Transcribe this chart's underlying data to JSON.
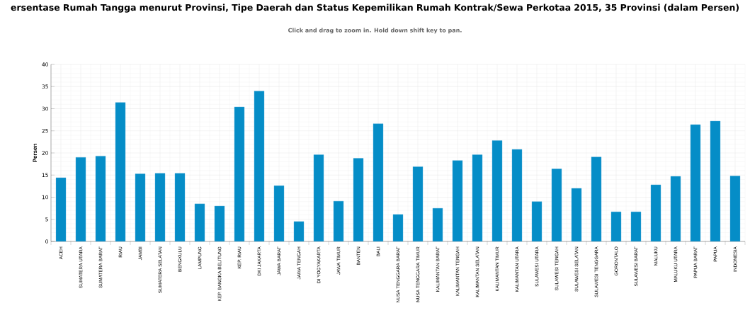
{
  "chart_data": {
    "type": "bar",
    "title": "ersentase Rumah Tangga menurut Provinsi, Tipe Daerah dan Status Kepemilikan Rumah Kontrak/Sewa Perkotaa 2015, 35 Provinsi (dalam Persen)",
    "subtitle": "Click and drag to zoom in. Hold down shift key to pan.",
    "ylabel": "Persen",
    "categories": [
      "ACEH",
      "SUMATERA UTARA",
      "SUMATERA BARAT",
      "RIAU",
      "JAMBI",
      "SUMATERA SELATAN",
      "BENGKULU",
      "LAMPUNG",
      "KEP. BANGKA BELITUNG",
      "KEP. RIAU",
      "DKI JAKARTA",
      "JAWA BARAT",
      "JAWA TENGAH",
      "DI YOGYAKARTA",
      "JAWA TIMUR",
      "BANTEN",
      "BALI",
      "NUSA TENGGARA BARAT",
      "NUSA TENGGARA TIMUR",
      "KALIMANTAN BARAT",
      "KALIMANTAN TENGAH",
      "KALIMANTAN SELATAN",
      "KALIMANTAN TIMUR",
      "KALIMANTAN UTARA",
      "SULAWESI UTARA",
      "SULAWESI TENGAH",
      "SULAWESI SELATAN",
      "SULAWESI TENGGARA",
      "GORONTALO",
      "SULAWESI BARAT",
      "MALUKU",
      "MALUKU UTARA",
      "PAPUA BARAT",
      "PAPUA",
      "INDONESIA"
    ],
    "values": [
      14.4,
      19.0,
      19.3,
      31.4,
      15.3,
      15.4,
      15.4,
      8.5,
      8.0,
      30.4,
      34.0,
      12.6,
      4.5,
      19.6,
      9.1,
      18.8,
      26.6,
      6.1,
      16.9,
      7.5,
      18.3,
      19.6,
      22.8,
      20.8,
      9.0,
      16.4,
      12.0,
      19.1,
      6.7,
      6.7,
      12.8,
      14.7,
      26.4,
      27.2,
      14.8
    ],
    "color": "#058dc7",
    "ylim": [
      0,
      40
    ],
    "yticks": [
      0,
      5,
      10,
      15,
      20,
      25,
      30,
      35,
      40
    ],
    "grid": true
  }
}
